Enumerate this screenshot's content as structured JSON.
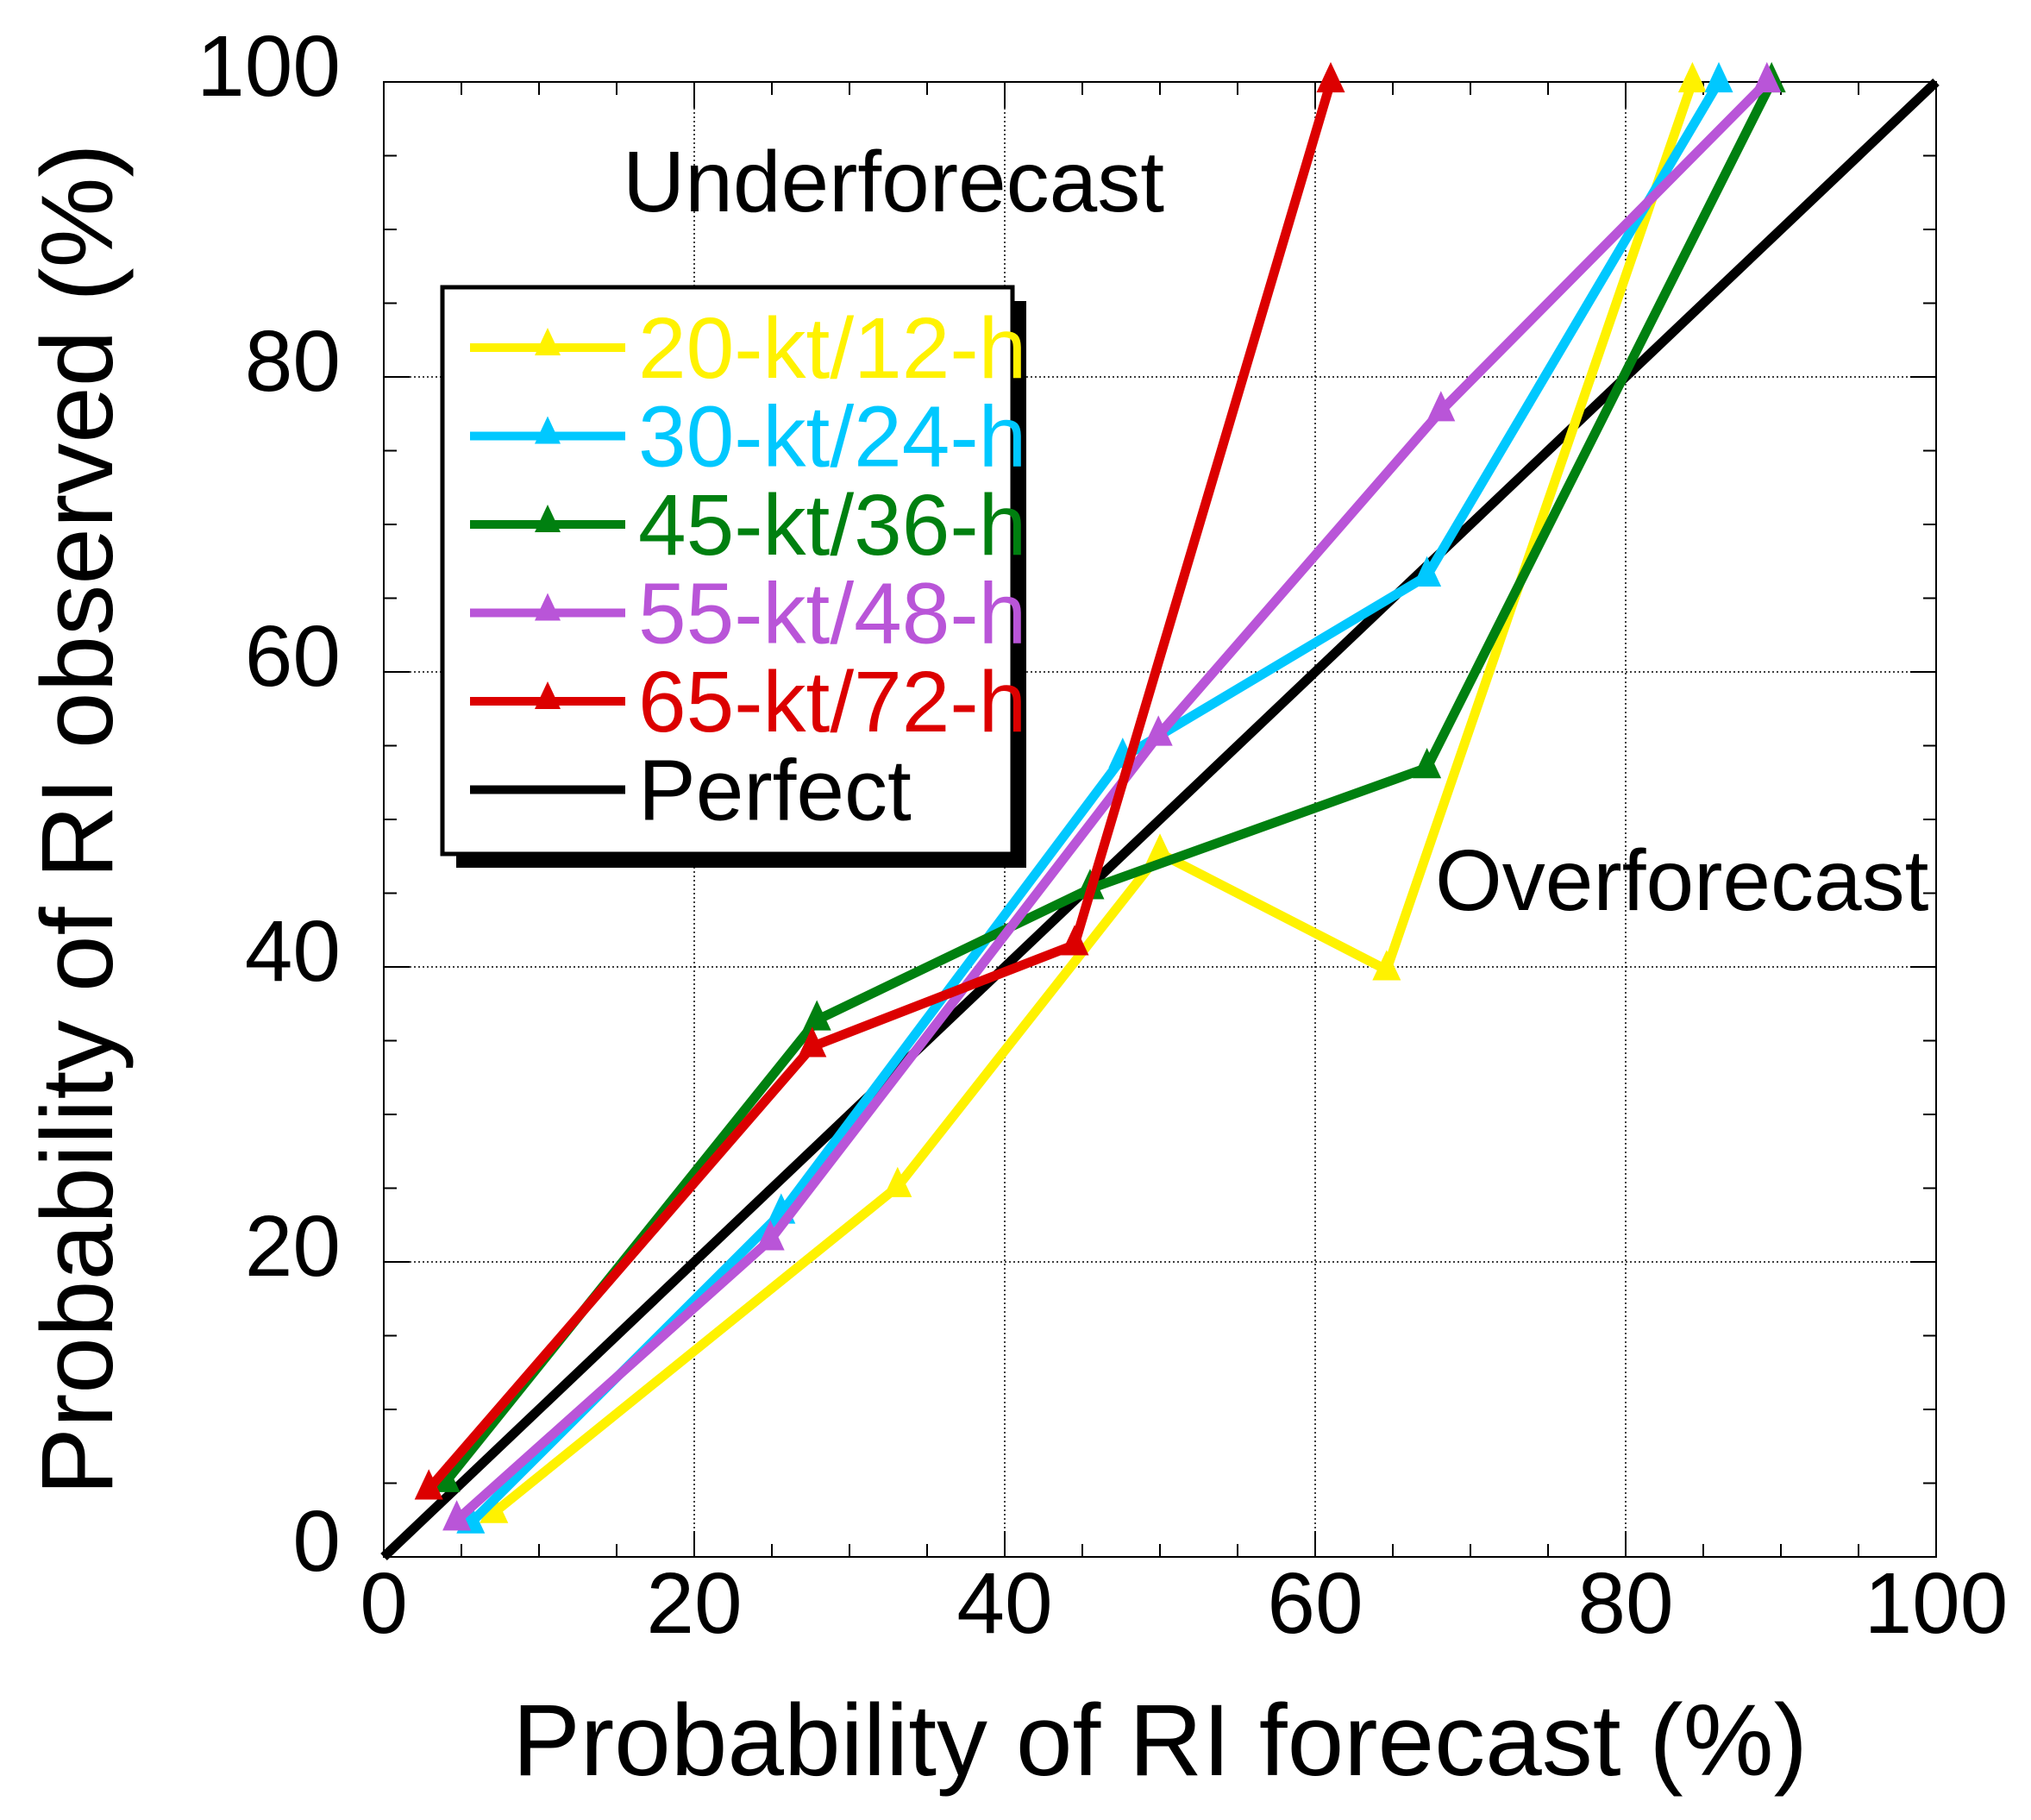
{
  "chart_data": {
    "type": "line",
    "title": "",
    "xlabel": "Probability of RI forecast (%)",
    "ylabel": "Probability of RI observed (%)",
    "xlim": [
      0,
      100
    ],
    "ylim": [
      0,
      100
    ],
    "xticks": [
      0,
      20,
      40,
      60,
      80,
      100
    ],
    "yticks": [
      0,
      20,
      40,
      60,
      80,
      100
    ],
    "xtick_labels": [
      "0",
      "20",
      "40",
      "60",
      "80",
      "100"
    ],
    "ytick_labels": [
      "0",
      "20",
      "40",
      "60",
      "80",
      "100"
    ],
    "minor_tick_step": 5,
    "grid": true,
    "grid_style": "dotted",
    "legend_position": "upper-left",
    "annotations": [
      {
        "text": "Underforecast",
        "x": 15,
        "y": 93
      },
      {
        "text": "Overforecast",
        "x": 68,
        "y": 44
      }
    ],
    "series": [
      {
        "name": "20-kt/12-h",
        "color": "#FFF200",
        "marker": "triangle",
        "x": [
          7.1,
          33.1,
          50.0,
          64.6,
          84.3
        ],
        "y": [
          3.0,
          25.1,
          47.7,
          39.8,
          100.0
        ]
      },
      {
        "name": "30-kt/24-h",
        "color": "#00C8FF",
        "marker": "triangle",
        "x": [
          5.6,
          25.6,
          47.6,
          67.2,
          86.0
        ],
        "y": [
          2.3,
          23.3,
          54.2,
          66.5,
          100.0
        ]
      },
      {
        "name": "45-kt/36-h",
        "color": "#008010",
        "marker": "triangle",
        "x": [
          4.0,
          27.9,
          45.5,
          67.2,
          89.4
        ],
        "y": [
          5.1,
          36.4,
          45.3,
          53.5,
          100.0
        ]
      },
      {
        "name": "55-kt/48-h",
        "color": "#B955D8",
        "marker": "triangle",
        "x": [
          4.7,
          24.9,
          49.9,
          68.1,
          89.1
        ],
        "y": [
          2.5,
          21.5,
          55.7,
          77.7,
          100.0
        ]
      },
      {
        "name": "65-kt/72-h",
        "color": "#DC0000",
        "marker": "triangle",
        "x": [
          2.9,
          27.6,
          44.5,
          61.0
        ],
        "y": [
          4.6,
          34.6,
          41.5,
          100.0
        ]
      },
      {
        "name": "Perfect",
        "color": "#000000",
        "marker": "none",
        "x": [
          0,
          100
        ],
        "y": [
          0,
          100
        ]
      }
    ]
  }
}
